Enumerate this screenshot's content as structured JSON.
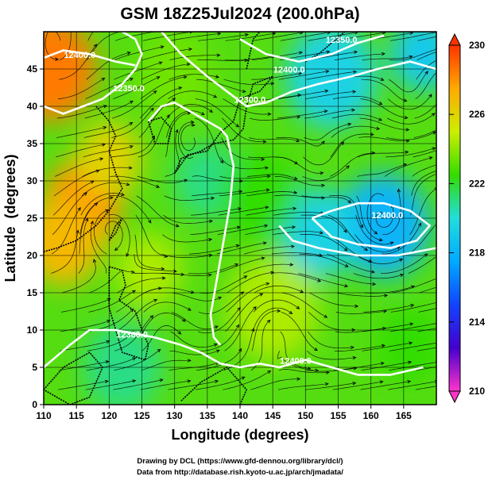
{
  "chart_data": {
    "type": "heatmap",
    "title": "GSM 18Z25Jul2024 (200.0hPa)",
    "xlabel": "Longitude (degrees)",
    "ylabel": "Latitude  (degrees)",
    "xlim": [
      110,
      170
    ],
    "ylim": [
      0,
      50
    ],
    "x_ticks": [
      "110",
      "115",
      "120",
      "125",
      "130",
      "135",
      "140",
      "145",
      "150",
      "155",
      "160",
      "165"
    ],
    "y_ticks": [
      "0",
      "5",
      "10",
      "15",
      "20",
      "25",
      "30",
      "35",
      "40",
      "45"
    ],
    "grid": true,
    "colorbar": {
      "min": 210,
      "max": 230,
      "ticks": [
        "230",
        "226",
        "222",
        "218",
        "214",
        "210"
      ],
      "colors": [
        "#ff33cc",
        "#4400cc",
        "#1144ff",
        "#00aaff",
        "#22dddd",
        "#33dd00",
        "#ccee00",
        "#ffaa00",
        "#ff3300"
      ],
      "extend": "both"
    },
    "contour_labels": [
      "12400.0",
      "12350.0",
      "12300.0",
      "12400.0",
      "12350.0",
      "12400.0",
      "12400.0",
      "12300.0"
    ],
    "contour_label_positions": [
      [
        115.5,
        46.5
      ],
      [
        123,
        42
      ],
      [
        141.5,
        40.5
      ],
      [
        147.5,
        44.5
      ],
      [
        155.5,
        48.5
      ],
      [
        148.5,
        5.5
      ],
      [
        162.5,
        25
      ],
      [
        123.5,
        9
      ]
    ],
    "field_blobs": [
      {
        "lon": 111,
        "lat": 45,
        "value": 228.5,
        "r": 7
      },
      {
        "lon": 116,
        "lat": 27,
        "value": 228.0,
        "r": 6
      },
      {
        "lon": 113,
        "lat": 22,
        "value": 227.0,
        "r": 6
      },
      {
        "lon": 120,
        "lat": 33,
        "value": 226.0,
        "r": 5
      },
      {
        "lon": 162,
        "lat": 24,
        "value": 218.0,
        "r": 7
      },
      {
        "lon": 152,
        "lat": 23,
        "value": 219.5,
        "r": 6
      },
      {
        "lon": 154,
        "lat": 44,
        "value": 219.5,
        "r": 7
      },
      {
        "lon": 168,
        "lat": 47,
        "value": 219.0,
        "r": 5
      },
      {
        "lon": 145,
        "lat": 13,
        "value": 224.5,
        "r": 7
      },
      {
        "lon": 126,
        "lat": 18,
        "value": 224.5,
        "r": 5
      },
      {
        "lon": 135,
        "lat": 30,
        "value": 221.0,
        "r": 5
      },
      {
        "lon": 122,
        "lat": 5,
        "value": 221.0,
        "r": 6
      },
      {
        "lon": 130,
        "lat": 44,
        "value": 223.5,
        "r": 6
      },
      {
        "lon": 166,
        "lat": 8,
        "value": 222.5,
        "r": 5
      },
      {
        "lon": 143,
        "lat": 28,
        "value": 222.5,
        "r": 6
      }
    ]
  },
  "credits": {
    "line1": "Drawing by DCL (https://www.gfd-dennou.org/library/dcl/)",
    "line2": "Data from http://database.rish.kyoto-u.ac.jp/arch/jmadata/"
  }
}
